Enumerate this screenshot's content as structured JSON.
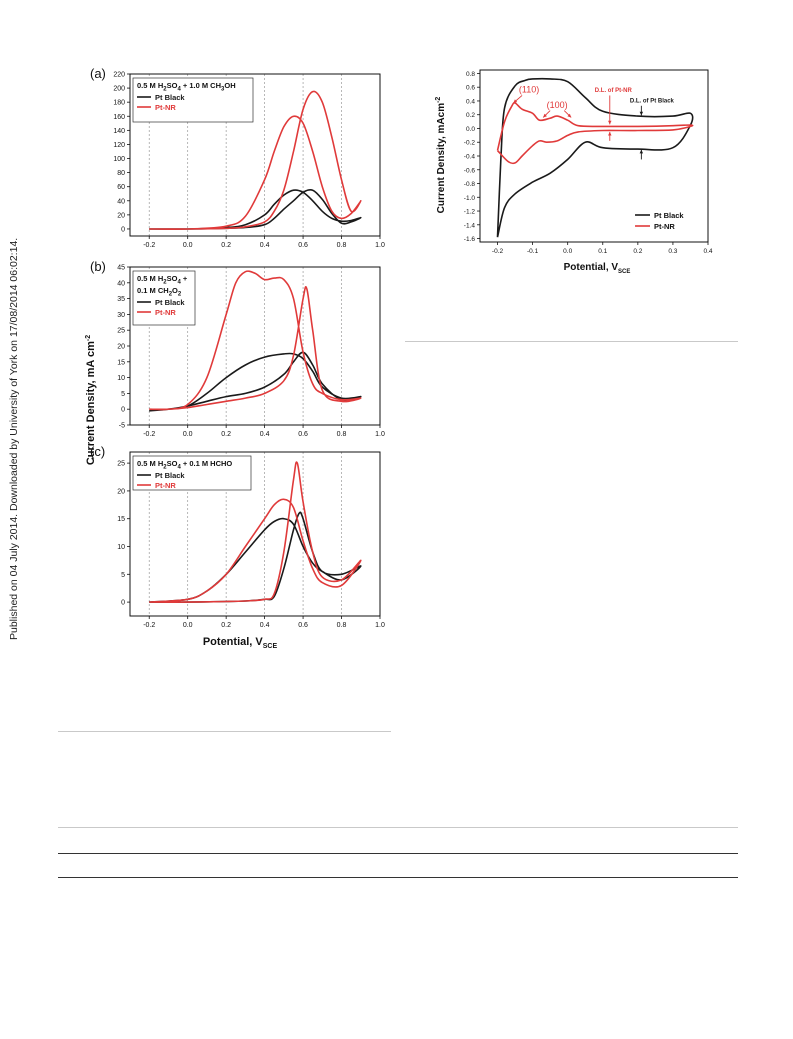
{
  "sidebar": {
    "notice": "Published on 04 July 2014. Downloaded by University of York on 17/08/2014 06:02:14."
  },
  "left_figure": {
    "ylabel": "Current Density, mA cm",
    "ylabel_sup": "-2",
    "xlabel": "Potential, V",
    "xlabel_sub": "SCE"
  },
  "right_figure": {
    "ylabel": "Current Density, mAcm",
    "ylabel_sup": "-2",
    "xlabel": "Potential, V",
    "xlabel_sub": "SCE"
  },
  "colors": {
    "pt_black": "#1a1a1a",
    "pt_nr": "#e03a3a",
    "grid": "#9a9a9a"
  },
  "chart_data": [
    {
      "id": "a",
      "panel_label": "(a)",
      "type": "line",
      "legend_lines": [
        "0.5 M H2SO4 + 1.0 M CH3OH"
      ],
      "legend_placement": "top-left",
      "xlim": [
        -0.3,
        1.0
      ],
      "ylim": [
        -10,
        220
      ],
      "xticks": [
        "-0.2",
        "0.0",
        "0.2",
        "0.4",
        "0.6",
        "0.8",
        "1.0"
      ],
      "yticks": [
        "0",
        "20",
        "40",
        "60",
        "80",
        "100",
        "120",
        "140",
        "160",
        "180",
        "200",
        "220"
      ],
      "xtick_values": [
        -0.2,
        0.0,
        0.2,
        0.4,
        0.6,
        0.8,
        1.0
      ],
      "ytick_values": [
        0,
        20,
        40,
        60,
        80,
        100,
        120,
        140,
        160,
        180,
        200,
        220
      ],
      "grid_x": [
        -0.2,
        0.0,
        0.2,
        0.4,
        0.6,
        0.8
      ],
      "series": [
        {
          "name": "Pt Black",
          "color": "#1a1a1a",
          "x": [
            -0.2,
            0.0,
            0.2,
            0.3,
            0.4,
            0.45,
            0.5,
            0.55,
            0.6,
            0.65,
            0.7,
            0.75,
            0.8,
            0.85,
            0.9,
            0.85,
            0.8,
            0.75,
            0.7,
            0.65,
            0.6,
            0.55,
            0.5,
            0.45,
            0.4,
            0.3,
            0.2,
            0.0,
            -0.2
          ],
          "y": [
            0,
            0,
            2,
            6,
            20,
            35,
            48,
            55,
            52,
            40,
            25,
            15,
            11,
            12,
            16,
            10,
            8,
            22,
            42,
            55,
            52,
            40,
            28,
            15,
            6,
            2,
            1,
            0,
            0
          ]
        },
        {
          "name": "Pt-NR",
          "color": "#e03a3a",
          "x": [
            -0.2,
            0.0,
            0.2,
            0.3,
            0.4,
            0.45,
            0.5,
            0.55,
            0.6,
            0.65,
            0.7,
            0.75,
            0.8,
            0.85,
            0.9,
            0.85,
            0.8,
            0.75,
            0.7,
            0.65,
            0.6,
            0.55,
            0.5,
            0.45,
            0.4,
            0.3,
            0.2,
            0.0,
            -0.2
          ],
          "y": [
            0,
            0,
            4,
            18,
            70,
            110,
            145,
            160,
            150,
            110,
            60,
            25,
            15,
            22,
            40,
            25,
            70,
            130,
            180,
            195,
            170,
            110,
            55,
            25,
            10,
            3,
            1,
            0,
            0
          ]
        }
      ]
    },
    {
      "id": "b",
      "panel_label": "(b)",
      "type": "line",
      "legend_lines": [
        "0.5 M H2SO4 +",
        "0.1 M CH2O2"
      ],
      "legend_placement": "top-left",
      "xlim": [
        -0.3,
        1.0
      ],
      "ylim": [
        -5,
        45
      ],
      "xticks": [
        "-0.2",
        "0.0",
        "0.2",
        "0.4",
        "0.6",
        "0.8",
        "1.0"
      ],
      "yticks": [
        "-5",
        "0",
        "5",
        "10",
        "15",
        "20",
        "25",
        "30",
        "35",
        "40",
        "45"
      ],
      "xtick_values": [
        -0.2,
        0.0,
        0.2,
        0.4,
        0.6,
        0.8,
        1.0
      ],
      "ytick_values": [
        -5,
        0,
        5,
        10,
        15,
        20,
        25,
        30,
        35,
        40,
        45
      ],
      "grid_x": [
        -0.2,
        0.0,
        0.2,
        0.4,
        0.6,
        0.8
      ],
      "series": [
        {
          "name": "Pt Black",
          "color": "#1a1a1a",
          "x": [
            -0.2,
            -0.1,
            0.0,
            0.1,
            0.2,
            0.3,
            0.4,
            0.5,
            0.55,
            0.6,
            0.65,
            0.7,
            0.8,
            0.9,
            0.8,
            0.7,
            0.65,
            0.6,
            0.55,
            0.5,
            0.4,
            0.3,
            0.2,
            0.1,
            0.0,
            -0.1,
            -0.2
          ],
          "y": [
            -0.5,
            0,
            1,
            5,
            10,
            14,
            16.5,
            17.5,
            17.5,
            16,
            12,
            7,
            3.5,
            4,
            3,
            8,
            14,
            18,
            15,
            11,
            7,
            5,
            4,
            2.5,
            1,
            0,
            -0.5
          ]
        },
        {
          "name": "Pt-NR",
          "color": "#e03a3a",
          "x": [
            -0.2,
            -0.1,
            0.0,
            0.1,
            0.2,
            0.25,
            0.3,
            0.35,
            0.4,
            0.45,
            0.5,
            0.55,
            0.6,
            0.65,
            0.7,
            0.8,
            0.9,
            0.8,
            0.7,
            0.65,
            0.62,
            0.6,
            0.55,
            0.5,
            0.4,
            0.3,
            0.2,
            0.1,
            0.0,
            -0.1,
            -0.2
          ],
          "y": [
            0,
            0,
            1.5,
            10,
            30,
            40,
            43.5,
            43,
            41,
            41.5,
            41,
            35,
            18,
            8,
            5,
            3,
            3.5,
            2.5,
            6,
            25,
            38,
            35,
            17,
            9,
            5,
            3.5,
            2.5,
            1.5,
            0.5,
            0,
            0
          ]
        }
      ]
    },
    {
      "id": "c",
      "panel_label": "(c)",
      "type": "line",
      "legend_lines": [
        "0.5 M H2SO4 + 0.1 M HCHO"
      ],
      "legend_placement": "top-left",
      "xlim": [
        -0.3,
        1.0
      ],
      "ylim": [
        -2.5,
        27
      ],
      "xticks": [
        "-0.2",
        "0.0",
        "0.2",
        "0.4",
        "0.6",
        "0.8",
        "1.0"
      ],
      "yticks": [
        "0",
        "5",
        "10",
        "15",
        "20",
        "25"
      ],
      "xtick_values": [
        -0.2,
        0.0,
        0.2,
        0.4,
        0.6,
        0.8,
        1.0
      ],
      "ytick_values": [
        0,
        5,
        10,
        15,
        20,
        25
      ],
      "grid_x": [
        -0.2,
        0.0,
        0.2,
        0.4,
        0.6,
        0.8
      ],
      "series": [
        {
          "name": "Pt Black",
          "color": "#1a1a1a",
          "x": [
            -0.2,
            0.0,
            0.1,
            0.2,
            0.3,
            0.4,
            0.45,
            0.5,
            0.55,
            0.6,
            0.65,
            0.7,
            0.8,
            0.9,
            0.8,
            0.7,
            0.65,
            0.6,
            0.58,
            0.55,
            0.5,
            0.45,
            0.4,
            0.3,
            0.2,
            0.0,
            -0.2
          ],
          "y": [
            0,
            0.5,
            2,
            5,
            9,
            13,
            14.5,
            15,
            14,
            10,
            7,
            5.5,
            4,
            6.5,
            5,
            5.5,
            9,
            15,
            16,
            13,
            6,
            1,
            0.5,
            0.2,
            0.1,
            0,
            0
          ]
        },
        {
          "name": "Pt-NR",
          "color": "#e03a3a",
          "x": [
            -0.2,
            0.0,
            0.1,
            0.2,
            0.3,
            0.4,
            0.45,
            0.5,
            0.55,
            0.6,
            0.65,
            0.7,
            0.8,
            0.9,
            0.8,
            0.7,
            0.65,
            0.6,
            0.57,
            0.55,
            0.5,
            0.45,
            0.4,
            0.3,
            0.2,
            0.0,
            -0.2
          ],
          "y": [
            0,
            0.5,
            2,
            5,
            10,
            15,
            17.5,
            18.5,
            17,
            11,
            6,
            3.5,
            3,
            7.5,
            4,
            4.5,
            9,
            18,
            25,
            22,
            9,
            1.5,
            0.5,
            0.2,
            0.1,
            0,
            0
          ]
        }
      ]
    },
    {
      "id": "d",
      "panel_label": "",
      "type": "line",
      "legend_placement": "bottom-right",
      "xlim": [
        -0.25,
        0.4
      ],
      "ylim": [
        -1.65,
        0.85
      ],
      "xticks": [
        "-0.2",
        "-0.1",
        "0.0",
        "0.1",
        "0.2",
        "0.3",
        "0.4"
      ],
      "yticks": [
        "-1.6",
        "-1.4",
        "-1.2",
        "-1.0",
        "-0.8",
        "-0.6",
        "-0.4",
        "-0.2",
        "0.0",
        "0.2",
        "0.4",
        "0.6",
        "0.8"
      ],
      "xtick_values": [
        -0.2,
        -0.1,
        0.0,
        0.1,
        0.2,
        0.3,
        0.4
      ],
      "ytick_values": [
        -1.6,
        -1.4,
        -1.2,
        -1.0,
        -0.8,
        -0.6,
        -0.4,
        -0.2,
        0.0,
        0.2,
        0.4,
        0.6,
        0.8
      ],
      "annotations": [
        {
          "text": "(110)",
          "x": -0.11,
          "y": 0.52,
          "color": "#e03a3a"
        },
        {
          "text": "(100)",
          "x": -0.03,
          "y": 0.3,
          "color": "#e03a3a"
        },
        {
          "text": "D.L. of Pt-NR",
          "x": 0.13,
          "y": 0.53,
          "color": "#e03a3a"
        },
        {
          "text": "D.L. of Pt Black",
          "x": 0.24,
          "y": 0.38,
          "color": "#1a1a1a"
        }
      ],
      "series": [
        {
          "name": "Pt Black",
          "color": "#1a1a1a",
          "x": [
            -0.2,
            -0.19,
            -0.18,
            -0.15,
            -0.12,
            -0.1,
            -0.05,
            0.0,
            0.05,
            0.1,
            0.2,
            0.3,
            0.35,
            0.35,
            0.3,
            0.2,
            0.1,
            0.05,
            0.0,
            -0.05,
            -0.1,
            -0.15,
            -0.18,
            -0.2
          ],
          "y": [
            -1.58,
            -0.4,
            0.3,
            0.62,
            0.7,
            0.72,
            0.72,
            0.68,
            0.45,
            0.25,
            0.18,
            0.18,
            0.22,
            0.05,
            -0.28,
            -0.3,
            -0.28,
            -0.2,
            -0.45,
            -0.65,
            -0.78,
            -0.95,
            -1.15,
            -1.58
          ]
        },
        {
          "name": "Pt-NR",
          "color": "#e03a3a",
          "x": [
            -0.2,
            -0.18,
            -0.16,
            -0.15,
            -0.13,
            -0.1,
            -0.08,
            -0.05,
            -0.03,
            0.0,
            0.03,
            0.1,
            0.2,
            0.3,
            0.35,
            0.35,
            0.3,
            0.2,
            0.1,
            0.03,
            0.0,
            -0.03,
            -0.06,
            -0.08,
            -0.1,
            -0.13,
            -0.15,
            -0.17,
            -0.2
          ],
          "y": [
            -0.32,
            0.1,
            0.32,
            0.37,
            0.28,
            0.22,
            0.12,
            0.15,
            0.18,
            0.12,
            0.04,
            0.03,
            0.03,
            0.04,
            0.05,
            0.03,
            -0.02,
            -0.03,
            -0.03,
            -0.05,
            -0.1,
            -0.18,
            -0.2,
            -0.18,
            -0.25,
            -0.4,
            -0.5,
            -0.48,
            -0.32
          ]
        }
      ]
    }
  ]
}
